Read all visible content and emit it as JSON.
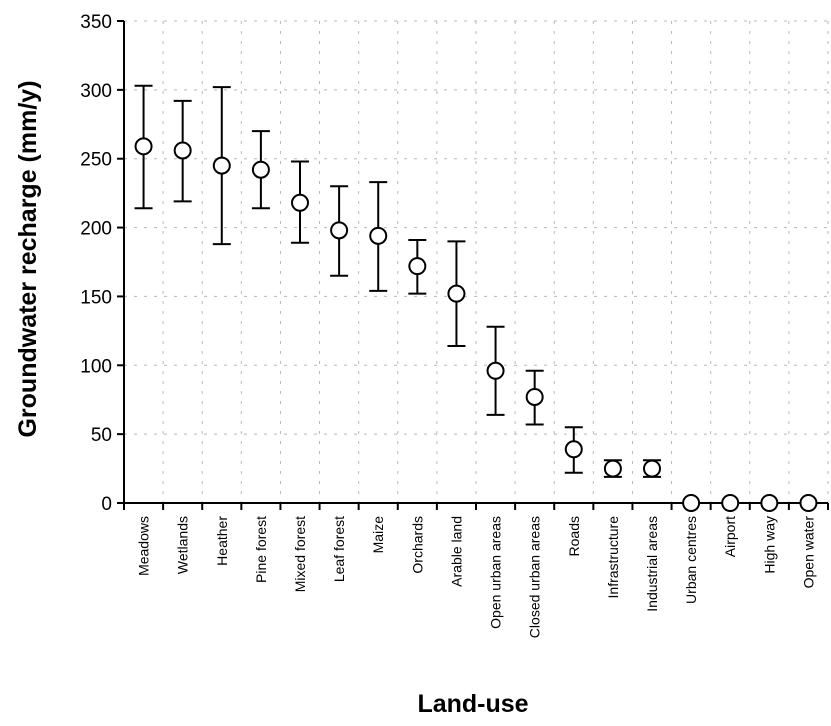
{
  "chart_data": {
    "type": "scatter",
    "title": "",
    "xlabel": "Land-use",
    "ylabel": "Groundwater recharge (mm/y)",
    "ylim": [
      0,
      350
    ],
    "yticks": [
      0,
      50,
      100,
      150,
      200,
      250,
      300,
      350
    ],
    "grid": "dashed vertical and horizontal",
    "categories": [
      "Meadows",
      "Wetlands",
      "Heather",
      "Pine forest",
      "Mixed forest",
      "Leaf forest",
      "Maize",
      "Orchards",
      "Arable land",
      "Open urban areas",
      "Closed urban areas",
      "Roads",
      "Infrastructure",
      "Industrial areas",
      "Urban centres",
      "Airport",
      "High way",
      "Open water"
    ],
    "series": [
      {
        "values": [
          259,
          256,
          245,
          242,
          218,
          198,
          194,
          172,
          152,
          96,
          77,
          39,
          25,
          25,
          0,
          0,
          0,
          0
        ],
        "lower": [
          214,
          219,
          188,
          214,
          189,
          165,
          154,
          152,
          114,
          64,
          57,
          22,
          19,
          19,
          0,
          0,
          0,
          0
        ],
        "upper": [
          303,
          292,
          302,
          270,
          248,
          230,
          233,
          191,
          190,
          128,
          96,
          55,
          31,
          31,
          0,
          0,
          0,
          0
        ]
      }
    ]
  }
}
